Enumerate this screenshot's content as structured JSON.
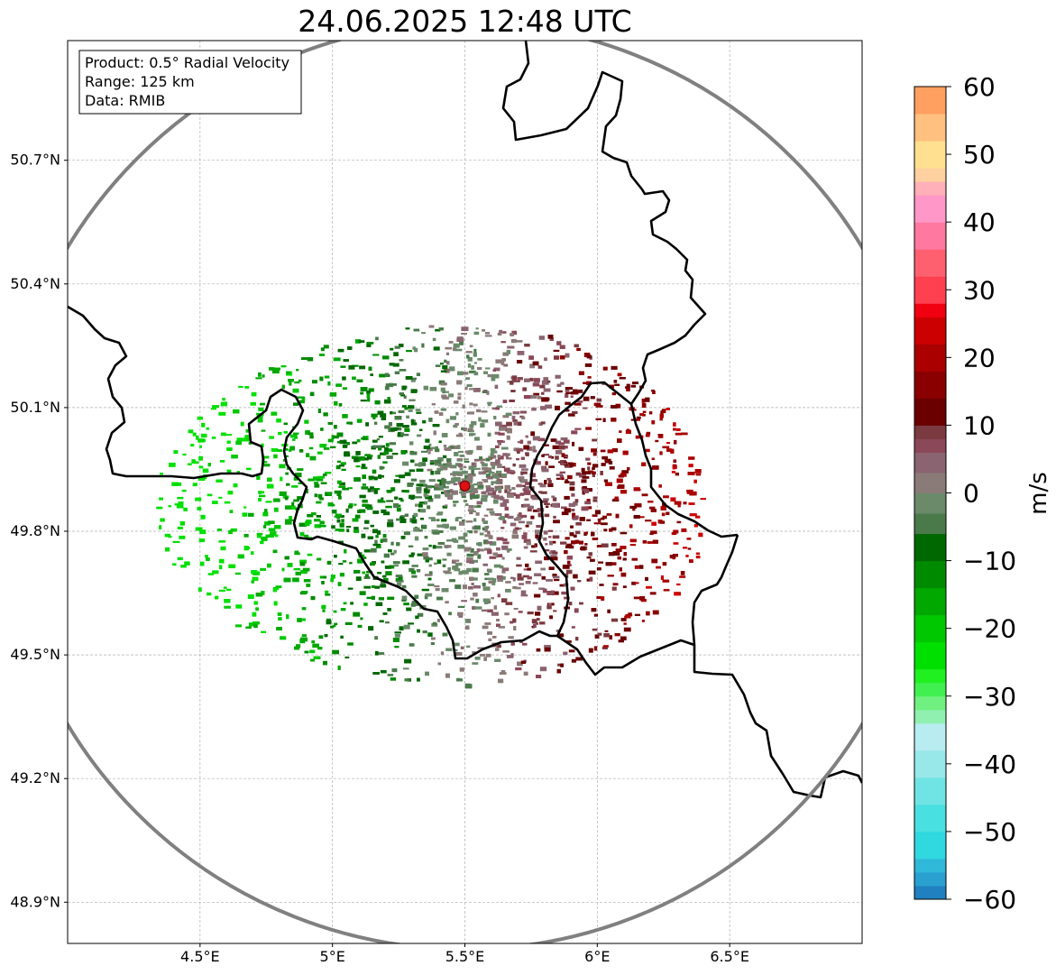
{
  "title": "24.06.2025 12:48 UTC",
  "info_box": {
    "line1": "Product: 0.5° Radial Velocity",
    "line2": "Range: 125 km",
    "line3": "Data: RMIB"
  },
  "map": {
    "lon_range": [
      4.0,
      7.0
    ],
    "lat_range": [
      48.8,
      51.0
    ],
    "x_ticks": [
      {
        "value": 4.5,
        "label": "4.5°E"
      },
      {
        "value": 5.0,
        "label": "5°E"
      },
      {
        "value": 5.5,
        "label": "5.5°E"
      },
      {
        "value": 6.0,
        "label": "6°E"
      },
      {
        "value": 6.5,
        "label": "6.5°E"
      }
    ],
    "y_ticks": [
      {
        "value": 50.7,
        "label": "50.7°N"
      },
      {
        "value": 50.4,
        "label": "50.4°N"
      },
      {
        "value": 50.1,
        "label": "50.1°N"
      },
      {
        "value": 49.8,
        "label": "49.8°N"
      },
      {
        "value": 49.5,
        "label": "49.5°N"
      },
      {
        "value": 49.2,
        "label": "49.2°N"
      },
      {
        "value": 48.9,
        "label": "48.9°N"
      }
    ],
    "radar_site": {
      "lon": 5.5,
      "lat": 49.91
    },
    "range_km": 125,
    "grid": true,
    "colors": {
      "range_ring": "#808080",
      "border": "#000000",
      "radar_marker": "#dd1111"
    }
  },
  "colorbar": {
    "label": "m/s",
    "min": -60,
    "max": 60,
    "ticks": [
      {
        "value": 60,
        "label": "60"
      },
      {
        "value": 50,
        "label": "50"
      },
      {
        "value": 40,
        "label": "40"
      },
      {
        "value": 30,
        "label": "30"
      },
      {
        "value": 20,
        "label": "20"
      },
      {
        "value": 10,
        "label": "10"
      },
      {
        "value": 0,
        "label": "0"
      },
      {
        "value": -10,
        "label": "−10"
      },
      {
        "value": -20,
        "label": "−20"
      },
      {
        "value": -30,
        "label": "−30"
      },
      {
        "value": -40,
        "label": "−40"
      },
      {
        "value": -50,
        "label": "−50"
      },
      {
        "value": -60,
        "label": "−60"
      }
    ],
    "color_stops": [
      {
        "from": -60,
        "to": -58,
        "color": "#2080c0"
      },
      {
        "from": -58,
        "to": -56,
        "color": "#2aa0d0"
      },
      {
        "from": -56,
        "to": -54,
        "color": "#30b8d8"
      },
      {
        "from": -54,
        "to": -50,
        "color": "#30d8e0"
      },
      {
        "from": -50,
        "to": -46,
        "color": "#48e0e0"
      },
      {
        "from": -46,
        "to": -42,
        "color": "#70e4e4"
      },
      {
        "from": -42,
        "to": -38,
        "color": "#98e8ea"
      },
      {
        "from": -38,
        "to": -34,
        "color": "#b8ecf0"
      },
      {
        "from": -34,
        "to": -32,
        "color": "#90f0b0"
      },
      {
        "from": -32,
        "to": -30,
        "color": "#70f080"
      },
      {
        "from": -30,
        "to": -28,
        "color": "#40f050"
      },
      {
        "from": -28,
        "to": -26,
        "color": "#20f020"
      },
      {
        "from": -26,
        "to": -22,
        "color": "#00e000"
      },
      {
        "from": -22,
        "to": -18,
        "color": "#00c800"
      },
      {
        "from": -18,
        "to": -14,
        "color": "#00a800"
      },
      {
        "from": -14,
        "to": -10,
        "color": "#008a00"
      },
      {
        "from": -10,
        "to": -6,
        "color": "#006800"
      },
      {
        "from": -6,
        "to": -3,
        "color": "#4a7a4a"
      },
      {
        "from": -3,
        "to": 0,
        "color": "#6a8a6a"
      },
      {
        "from": 0,
        "to": 3,
        "color": "#8a7a78"
      },
      {
        "from": 3,
        "to": 6,
        "color": "#8a6470"
      },
      {
        "from": 6,
        "to": 8,
        "color": "#8a4858"
      },
      {
        "from": 8,
        "to": 10,
        "color": "#7a3a40"
      },
      {
        "from": 10,
        "to": 14,
        "color": "#6a0000"
      },
      {
        "from": 14,
        "to": 18,
        "color": "#8a0000"
      },
      {
        "from": 18,
        "to": 22,
        "color": "#aa0000"
      },
      {
        "from": 22,
        "to": 26,
        "color": "#cc0000"
      },
      {
        "from": 26,
        "to": 28,
        "color": "#f00010"
      },
      {
        "from": 28,
        "to": 32,
        "color": "#ff4050"
      },
      {
        "from": 32,
        "to": 36,
        "color": "#ff6070"
      },
      {
        "from": 36,
        "to": 40,
        "color": "#ff78a0"
      },
      {
        "from": 40,
        "to": 44,
        "color": "#ff98c8"
      },
      {
        "from": 44,
        "to": 46,
        "color": "#ffb0b8"
      },
      {
        "from": 46,
        "to": 48,
        "color": "#ffd0a0"
      },
      {
        "from": 48,
        "to": 52,
        "color": "#ffe090"
      },
      {
        "from": 52,
        "to": 56,
        "color": "#ffc080"
      },
      {
        "from": 56,
        "to": 60,
        "color": "#ffa060"
      }
    ]
  }
}
